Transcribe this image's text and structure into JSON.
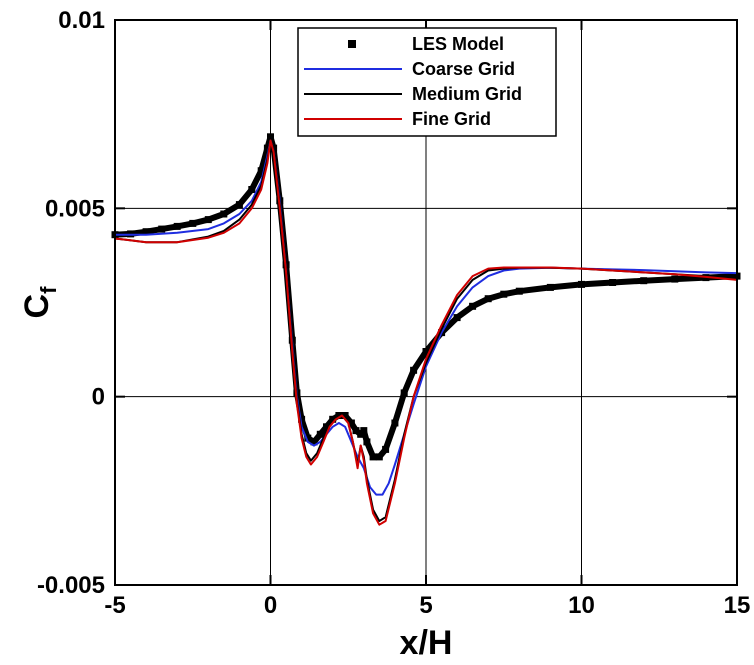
{
  "chart_data": {
    "type": "line",
    "xlabel": "x/H",
    "ylabel": "C",
    "ylabel_sub": "f",
    "xlim": [
      -5,
      15
    ],
    "ylim": [
      -0.005,
      0.01
    ],
    "xticks": [
      -5,
      0,
      5,
      10,
      15
    ],
    "xtick_labels": [
      "-5",
      "0",
      "5",
      "10",
      "15"
    ],
    "yticks": [
      -0.005,
      0,
      0.005,
      0.01
    ],
    "ytick_labels": [
      "-0.005",
      "0",
      "0.005",
      "0.01"
    ],
    "grid": true,
    "legend_position": "top-center",
    "series": [
      {
        "name": "LES Model",
        "style": "markers",
        "color": "#000000",
        "x": [
          -5,
          -4.5,
          -4,
          -3.5,
          -3,
          -2.5,
          -2,
          -1.5,
          -1,
          -0.6,
          -0.3,
          -0.1,
          0,
          0.1,
          0.3,
          0.5,
          0.7,
          0.85,
          1.0,
          1.2,
          1.4,
          1.6,
          1.8,
          2.0,
          2.2,
          2.4,
          2.6,
          2.75,
          2.9,
          3.0,
          3.1,
          3.3,
          3.5,
          3.7,
          4.0,
          4.3,
          4.6,
          5.0,
          5.5,
          6.0,
          6.5,
          7.0,
          7.5,
          8.0,
          9.0,
          10.0,
          11.0,
          12.0,
          13.0,
          14.0,
          15.0
        ],
        "y": [
          0.0043,
          0.00432,
          0.00438,
          0.00445,
          0.00452,
          0.0046,
          0.0047,
          0.00485,
          0.0051,
          0.0055,
          0.006,
          0.0066,
          0.0069,
          0.0066,
          0.0052,
          0.0035,
          0.0015,
          0.0001,
          -0.0006,
          -0.0011,
          -0.0012,
          -0.001,
          -0.0008,
          -0.0006,
          -0.0005,
          -0.0005,
          -0.0007,
          -0.0009,
          -0.001,
          -0.0009,
          -0.0012,
          -0.0016,
          -0.0016,
          -0.0014,
          -0.0007,
          0.0001,
          0.0007,
          0.0012,
          0.0017,
          0.0021,
          0.0024,
          0.0026,
          0.00272,
          0.0028,
          0.0029,
          0.00298,
          0.00303,
          0.00308,
          0.00312,
          0.00316,
          0.0032
        ]
      },
      {
        "name": "Coarse Grid",
        "style": "line",
        "color": "#1f2de0",
        "x": [
          -5,
          -4,
          -3,
          -2,
          -1.5,
          -1,
          -0.6,
          -0.3,
          -0.1,
          0,
          0.1,
          0.3,
          0.5,
          0.7,
          0.85,
          1.0,
          1.2,
          1.4,
          1.6,
          1.8,
          2.0,
          2.2,
          2.4,
          2.6,
          2.8,
          3.0,
          3.2,
          3.4,
          3.6,
          3.8,
          4.0,
          4.3,
          4.6,
          5.0,
          5.5,
          6.0,
          6.5,
          7.0,
          7.5,
          8.0,
          9.0,
          10.0,
          11.0,
          12.0,
          13.0,
          14.0,
          15.0
        ],
        "y": [
          0.0043,
          0.0043,
          0.00435,
          0.00445,
          0.0046,
          0.00485,
          0.0052,
          0.0057,
          0.0064,
          0.0068,
          0.0066,
          0.0052,
          0.0034,
          0.0014,
          0.0,
          -0.0008,
          -0.0012,
          -0.0013,
          -0.0012,
          -0.001,
          -0.0008,
          -0.0007,
          -0.0008,
          -0.0012,
          -0.0016,
          -0.0019,
          -0.0024,
          -0.0026,
          -0.0026,
          -0.0023,
          -0.0018,
          -0.001,
          -0.0002,
          0.0008,
          0.0017,
          0.0024,
          0.0029,
          0.0032,
          0.00335,
          0.0034,
          0.00342,
          0.0034,
          0.00338,
          0.00336,
          0.00333,
          0.0033,
          0.00328
        ]
      },
      {
        "name": "Medium Grid",
        "style": "line",
        "color": "#000000",
        "x": [
          -5,
          -4,
          -3,
          -2,
          -1.5,
          -1,
          -0.6,
          -0.3,
          -0.1,
          0,
          0.1,
          0.3,
          0.5,
          0.7,
          0.85,
          1.0,
          1.15,
          1.3,
          1.5,
          1.7,
          1.9,
          2.1,
          2.3,
          2.5,
          2.65,
          2.8,
          2.9,
          3.0,
          3.1,
          3.3,
          3.5,
          3.7,
          4.0,
          4.3,
          4.6,
          5.0,
          5.5,
          6.0,
          6.5,
          7.0,
          7.5,
          8.0,
          9.0,
          10.0,
          11.0,
          12.0,
          13.0,
          14.0,
          15.0
        ],
        "y": [
          0.0042,
          0.0041,
          0.0041,
          0.00425,
          0.0044,
          0.0047,
          0.0051,
          0.0056,
          0.0063,
          0.0068,
          0.0066,
          0.0051,
          0.0034,
          0.0013,
          -0.0001,
          -0.001,
          -0.0015,
          -0.0017,
          -0.0015,
          -0.0011,
          -0.0007,
          -0.0005,
          -0.0005,
          -0.0007,
          -0.0012,
          -0.0018,
          -0.0013,
          -0.0016,
          -0.0022,
          -0.003,
          -0.0033,
          -0.0032,
          -0.0022,
          -0.001,
          0.0,
          0.0009,
          0.0018,
          0.0026,
          0.0031,
          0.00335,
          0.0034,
          0.00342,
          0.00342,
          0.0034,
          0.00335,
          0.0033,
          0.00325,
          0.0032,
          0.00315
        ]
      },
      {
        "name": "Fine Grid",
        "style": "line",
        "color": "#d00000",
        "x": [
          -5,
          -4,
          -3,
          -2,
          -1.5,
          -1,
          -0.6,
          -0.3,
          -0.1,
          0,
          0.1,
          0.3,
          0.5,
          0.7,
          0.85,
          1.0,
          1.15,
          1.3,
          1.5,
          1.7,
          1.9,
          2.1,
          2.3,
          2.5,
          2.65,
          2.8,
          2.9,
          3.0,
          3.1,
          3.3,
          3.5,
          3.7,
          4.0,
          4.3,
          4.6,
          5.0,
          5.5,
          6.0,
          6.5,
          7.0,
          7.5,
          8.0,
          9.0,
          10.0,
          11.0,
          12.0,
          13.0,
          14.0,
          15.0
        ],
        "y": [
          0.0042,
          0.0041,
          0.0041,
          0.00422,
          0.00435,
          0.0046,
          0.005,
          0.0055,
          0.0062,
          0.0068,
          0.0065,
          0.005,
          0.0033,
          0.0012,
          -0.0002,
          -0.0011,
          -0.0016,
          -0.0018,
          -0.0016,
          -0.0012,
          -0.0008,
          -0.0006,
          -0.0005,
          -0.0007,
          -0.0012,
          -0.0019,
          -0.0013,
          -0.0017,
          -0.0023,
          -0.0031,
          -0.0034,
          -0.0033,
          -0.0023,
          -0.0011,
          0.0,
          0.001,
          0.0019,
          0.0027,
          0.0032,
          0.0034,
          0.00343,
          0.00343,
          0.00343,
          0.0034,
          0.00335,
          0.0033,
          0.00325,
          0.00318,
          0.0031
        ]
      }
    ]
  }
}
